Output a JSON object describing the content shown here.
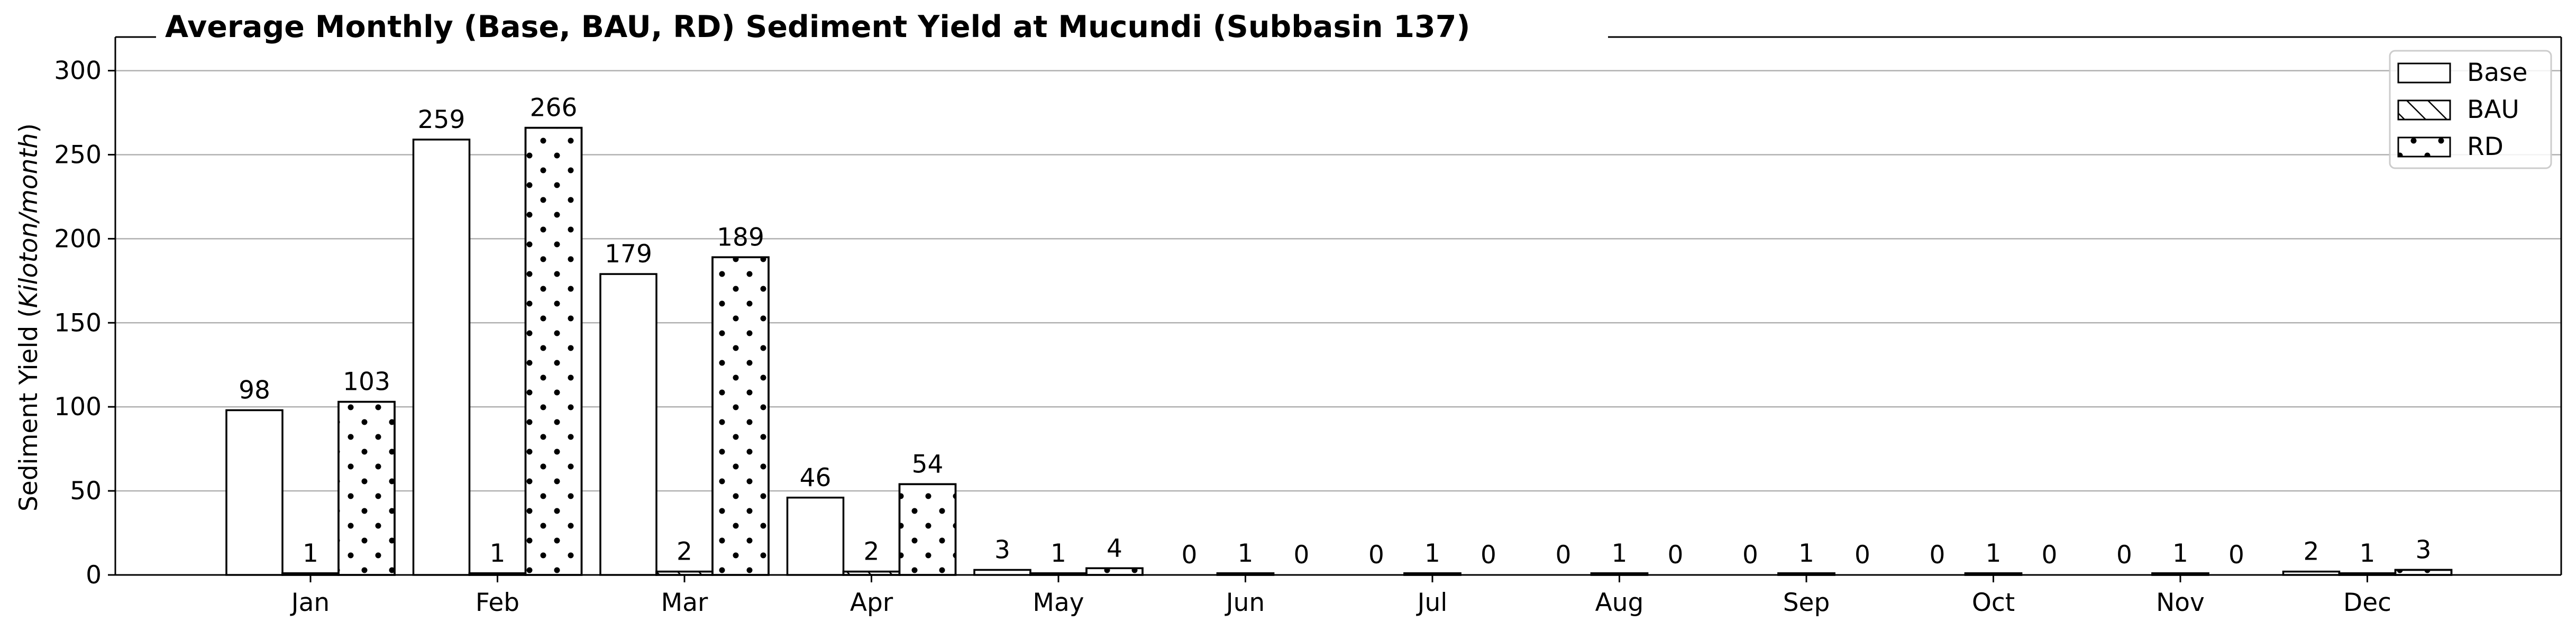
{
  "chart_data": {
    "type": "bar",
    "title": "Average Monthly (Base, BAU, RD) Sediment Yield at Mucundi (Subbasin 137)",
    "ylabel_prefix": "Sediment Yield (",
    "ylabel_unit": "Kiloton/month",
    "ylabel_suffix": ")",
    "xlabel": "",
    "ylim": [
      0,
      320
    ],
    "yticks": [
      0,
      50,
      100,
      150,
      200,
      250,
      300
    ],
    "grid": "y",
    "legend_position": "top-right",
    "categories": [
      "Jan",
      "Feb",
      "Mar",
      "Apr",
      "May",
      "Jun",
      "Jul",
      "Aug",
      "Sep",
      "Oct",
      "Nov",
      "Dec"
    ],
    "series": [
      {
        "name": "Base",
        "pattern": "none",
        "values": [
          98,
          259,
          179,
          46,
          3,
          0,
          0,
          0,
          0,
          0,
          0,
          2
        ]
      },
      {
        "name": "BAU",
        "pattern": "diagonal-hatch",
        "values": [
          1,
          1,
          2,
          2,
          1,
          1,
          1,
          1,
          1,
          1,
          1,
          1
        ]
      },
      {
        "name": "RD",
        "pattern": "dots",
        "values": [
          103,
          266,
          189,
          54,
          4,
          0,
          0,
          0,
          0,
          0,
          0,
          3
        ]
      }
    ]
  },
  "colors": {
    "bar_fill": "#ffffff",
    "bar_edge": "#000000",
    "grid": "#b0b0b0",
    "legend_edge": "#cccccc"
  }
}
